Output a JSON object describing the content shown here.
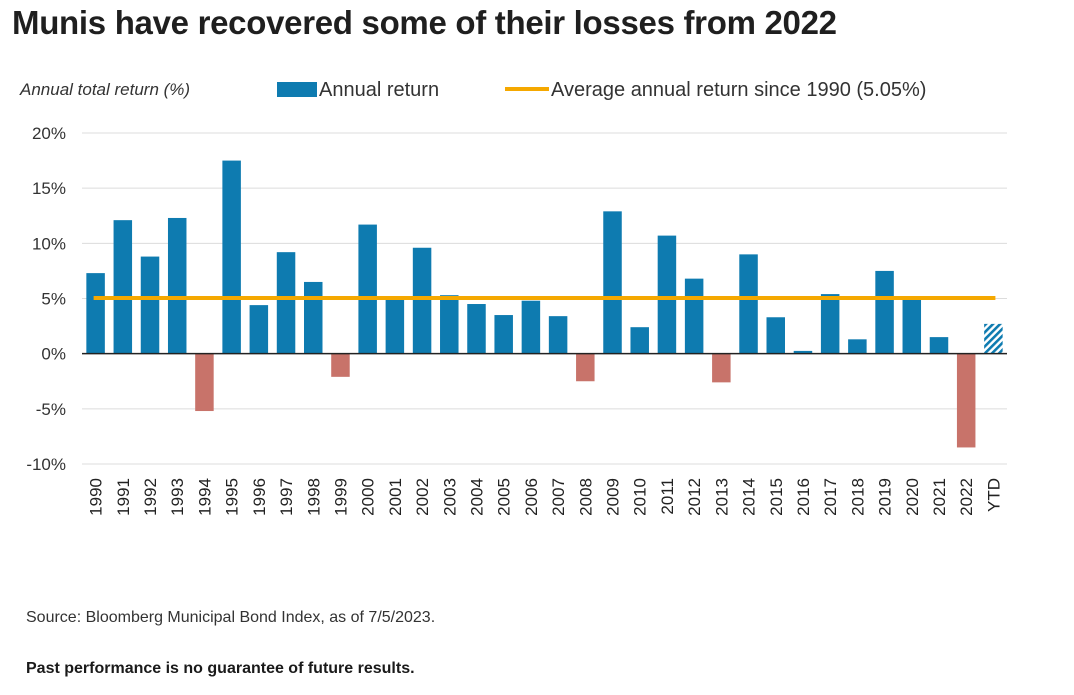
{
  "title": "Munis have recovered some of their losses from 2022",
  "source": "Source: Bloomberg Municipal Bond Index, as of 7/5/2023.",
  "disclaimer": "Past performance is no guarantee of future results.",
  "colors": {
    "positive": "#0E7BB0",
    "negative": "#C8736A",
    "average": "#F5A800",
    "gridline": "#DCDCDC",
    "zero_line": "#222222"
  },
  "chart_data": {
    "type": "bar",
    "ylabel": "Annual total return (%)",
    "ylim": [
      -10,
      20
    ],
    "yticks": [
      20,
      15,
      10,
      5,
      0,
      -5,
      -10
    ],
    "ytick_labels": [
      "20%",
      "15%",
      "10%",
      "5%",
      "0%",
      "-5%",
      "-10%"
    ],
    "grid": true,
    "legend": {
      "placement": "top",
      "items": [
        {
          "label": "Annual return",
          "kind": "bar",
          "color": "#0E7BB0"
        },
        {
          "label": "Average annual return since 1990 (5.05%)",
          "kind": "line",
          "color": "#F5A800"
        }
      ]
    },
    "categories": [
      "1990",
      "1991",
      "1992",
      "1993",
      "1994",
      "1995",
      "1996",
      "1997",
      "1998",
      "1999",
      "2000",
      "2001",
      "2002",
      "2003",
      "2004",
      "2005",
      "2006",
      "2007",
      "2008",
      "2009",
      "2010",
      "2011",
      "2012",
      "2013",
      "2014",
      "2015",
      "2016",
      "2017",
      "2018",
      "2019",
      "2020",
      "2021",
      "2022",
      "YTD"
    ],
    "series": [
      {
        "name": "Annual return",
        "values": [
          7.3,
          12.1,
          8.8,
          12.3,
          -5.2,
          17.5,
          4.4,
          9.2,
          6.5,
          -2.1,
          11.7,
          5.1,
          9.6,
          5.3,
          4.5,
          3.5,
          4.8,
          3.4,
          -2.5,
          12.9,
          2.4,
          10.7,
          6.8,
          -2.6,
          9.0,
          3.3,
          0.25,
          5.4,
          1.3,
          7.5,
          5.2,
          1.5,
          -8.5,
          2.7
        ]
      },
      {
        "name": "Average annual return since 1990 (5.05%)",
        "kind": "reference-line",
        "value": 5.05
      }
    ],
    "hatched_categories": [
      "YTD"
    ]
  }
}
